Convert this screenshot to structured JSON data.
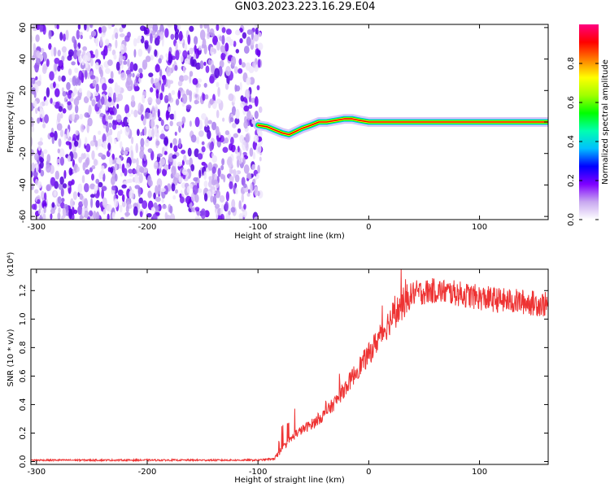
{
  "title": "GN03.2023.223.16.29.E04",
  "chart_data": [
    {
      "type": "heatmap",
      "xlabel": "Height of straight line (km)",
      "ylabel": "Frequency (Hz)",
      "xlim": [
        -305,
        162
      ],
      "ylim": [
        -62,
        62
      ],
      "xticks": [
        -300,
        -200,
        -100,
        0,
        100
      ],
      "yticks": [
        -60,
        -40,
        -20,
        0,
        20,
        40,
        60
      ],
      "noise_region_x": [
        -305,
        -97
      ],
      "signal_trace": {
        "x": [
          -100,
          -92,
          -85,
          -78,
          -72,
          -66,
          -60,
          -52,
          -45,
          -38,
          -30,
          -22,
          -15,
          -8,
          0,
          20,
          60,
          100,
          162
        ],
        "y": [
          -2,
          -3,
          -5,
          -7,
          -8,
          -6,
          -4,
          -2,
          0,
          0,
          1,
          2,
          2,
          1,
          0,
          0,
          0,
          0,
          0
        ]
      },
      "colorbar": {
        "label": "Normalized spectral amplitude",
        "ticks": [
          "0.0",
          "0.2",
          "0.4",
          "0.6",
          "0.8"
        ],
        "range": [
          0,
          1
        ],
        "colors": [
          "#ffffff",
          "#c8a8f0",
          "#7f00ff",
          "#0000ff",
          "#00bfff",
          "#00ffb0",
          "#00ff00",
          "#a0ff00",
          "#ffff00",
          "#ff8000",
          "#ff0000",
          "#ff0080"
        ]
      }
    },
    {
      "type": "line",
      "xlabel": "Height of straight line (km)",
      "ylabel": "SNR (10 * v/v)",
      "y_multiplier": "(x10⁴)",
      "xlim": [
        -305,
        162
      ],
      "ylim": [
        -0.02,
        1.35
      ],
      "xticks": [
        -300,
        -200,
        -100,
        0,
        100
      ],
      "yticks": [
        "0.0",
        "0.2",
        "0.4",
        "0.6",
        "0.8",
        "1.0",
        "1.2"
      ],
      "color": "#ee3333",
      "x": [
        -305,
        -250,
        -200,
        -150,
        -100,
        -85,
        -75,
        -65,
        -50,
        -40,
        -30,
        -20,
        -10,
        0,
        10,
        20,
        30,
        40,
        60,
        80,
        100,
        120,
        140,
        162
      ],
      "y": [
        0.01,
        0.01,
        0.01,
        0.01,
        0.01,
        0.02,
        0.12,
        0.2,
        0.27,
        0.33,
        0.42,
        0.53,
        0.65,
        0.75,
        0.88,
        1.0,
        1.1,
        1.18,
        1.2,
        1.18,
        1.15,
        1.13,
        1.12,
        1.1
      ]
    }
  ]
}
